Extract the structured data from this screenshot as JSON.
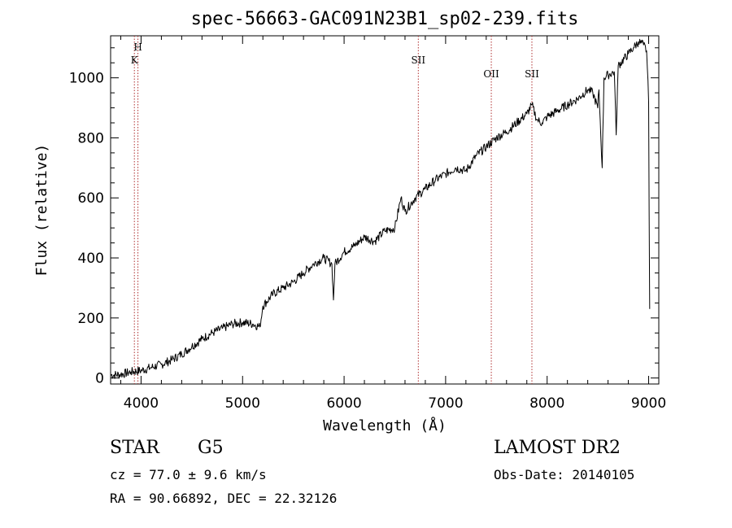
{
  "chart_data": {
    "type": "line",
    "title": "spec-56663-GAC091N23B1_sp02-239.fits",
    "xlabel": "Wavelength (Å)",
    "ylabel": "Flux (relative)",
    "xlim": [
      3700,
      9100
    ],
    "ylim": [
      -20,
      1140
    ],
    "xticks": [
      4000,
      5000,
      6000,
      7000,
      8000,
      9000
    ],
    "xtick_labels": [
      "4000",
      "5000",
      "6000",
      "7000",
      "8000",
      "9000"
    ],
    "yticks": [
      0,
      200,
      400,
      600,
      800,
      1000
    ],
    "ytick_labels": [
      "0",
      "200",
      "400",
      "600",
      "800",
      "1000"
    ],
    "series": [
      {
        "x": [
          3700,
          3800,
          3900,
          4000,
          4100,
          4200,
          4300,
          4400,
          4500,
          4600,
          4700,
          4800,
          4900,
          5000,
          5100,
          5170,
          5200,
          5300,
          5400,
          5500,
          5600,
          5700,
          5800,
          5880,
          5895,
          5910,
          6000,
          6100,
          6200,
          6300,
          6400,
          6500,
          6560,
          6600,
          6700,
          6800,
          6900,
          7000,
          7100,
          7200,
          7300,
          7400,
          7500,
          7600,
          7700,
          7800,
          7850,
          7900,
          7950,
          8000,
          8100,
          8200,
          8300,
          8400,
          8450,
          8498,
          8510,
          8542,
          8560,
          8600,
          8662,
          8680,
          8700,
          8800,
          8850,
          8900,
          8950,
          8980,
          9000,
          9010
        ],
        "y": [
          10,
          12,
          20,
          25,
          35,
          45,
          60,
          80,
          105,
          130,
          150,
          165,
          180,
          185,
          180,
          170,
          240,
          280,
          300,
          320,
          350,
          380,
          400,
          380,
          260,
          380,
          420,
          440,
          470,
          455,
          490,
          500,
          600,
          555,
          600,
          630,
          660,
          680,
          700,
          690,
          740,
          770,
          800,
          820,
          850,
          880,
          910,
          860,
          850,
          870,
          890,
          910,
          930,
          960,
          950,
          900,
          960,
          700,
          1000,
          1010,
          1020,
          810,
          1040,
          1080,
          1100,
          1120,
          1110,
          1090,
          920,
          230
        ],
        "color": "#000000"
      }
    ],
    "lines": [
      {
        "x": 3934,
        "label": "K"
      },
      {
        "x": 3969,
        "label": "H"
      },
      {
        "x": 6731,
        "label": "SII"
      },
      {
        "x": 7450,
        "label": "OII"
      },
      {
        "x": 7850,
        "label": "SII"
      }
    ],
    "line_color": "#b03030",
    "grid": false,
    "legend": "none"
  },
  "info": {
    "class_label": "STAR",
    "subclass_label": "G5",
    "survey_label": "LAMOST DR2",
    "cz_text": "cz = 77.0 ± 9.6 km/s",
    "obsdate_text": "Obs-Date: 20140105",
    "radec_text": "RA =  90.66892, DEC =  22.32126"
  }
}
